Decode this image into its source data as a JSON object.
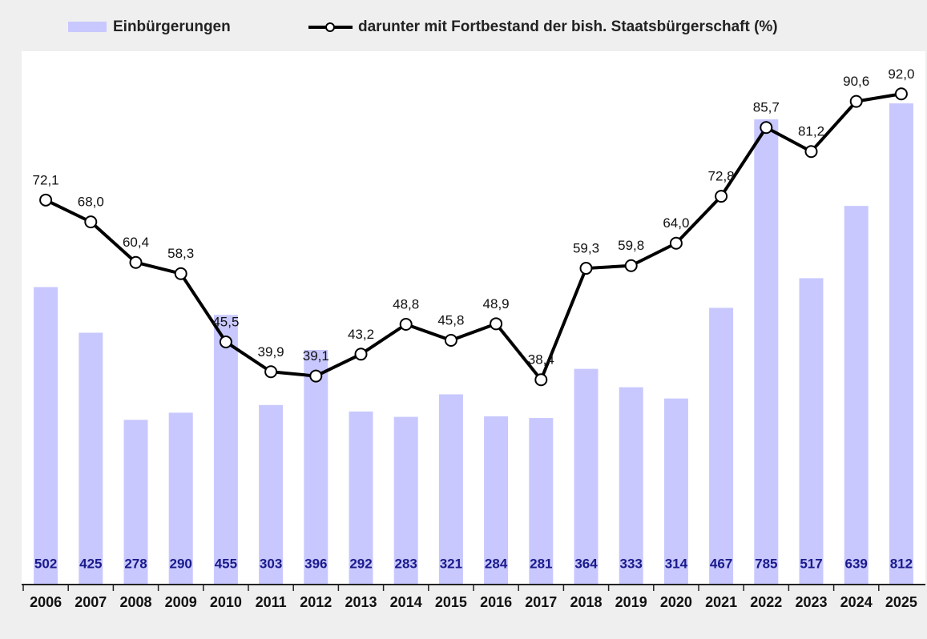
{
  "chart_data": {
    "type": "bar-line",
    "categories": [
      "2006",
      "2007",
      "2008",
      "2009",
      "2010",
      "2011",
      "2012",
      "2013",
      "2014",
      "2015",
      "2016",
      "2017",
      "2018",
      "2019",
      "2020",
      "2021",
      "2022",
      "2023",
      "2024",
      "2025"
    ],
    "series": [
      {
        "name": "Einbürgerungen",
        "type": "bar",
        "color": "#c8c8ff",
        "values": [
          502,
          425,
          278,
          290,
          455,
          303,
          396,
          292,
          283,
          321,
          284,
          281,
          364,
          333,
          314,
          467,
          785,
          517,
          639,
          812
        ]
      },
      {
        "name": "darunter mit Fortbestand der bish. Staatsbürgerschaft (%)",
        "type": "line",
        "axis": "y2",
        "color": "#000000",
        "values": [
          72.1,
          68.0,
          60.4,
          58.3,
          45.5,
          39.9,
          39.1,
          43.2,
          48.8,
          45.8,
          48.9,
          38.4,
          59.3,
          59.8,
          64.0,
          72.8,
          85.7,
          81.2,
          90.6,
          92.0
        ],
        "value_labels": [
          "72,1",
          "68,0",
          "60,4",
          "58,3",
          "45,5",
          "39,9",
          "39,1",
          "43,2",
          "48,8",
          "45,8",
          "48,9",
          "38,4",
          "59,3",
          "59,8",
          "64,0",
          "72,8",
          "85,7",
          "81,2",
          "90,6",
          "92,0"
        ]
      }
    ],
    "ylim": [
      0,
      900
    ],
    "y2lim": [
      0,
      100
    ],
    "legend": "top"
  }
}
